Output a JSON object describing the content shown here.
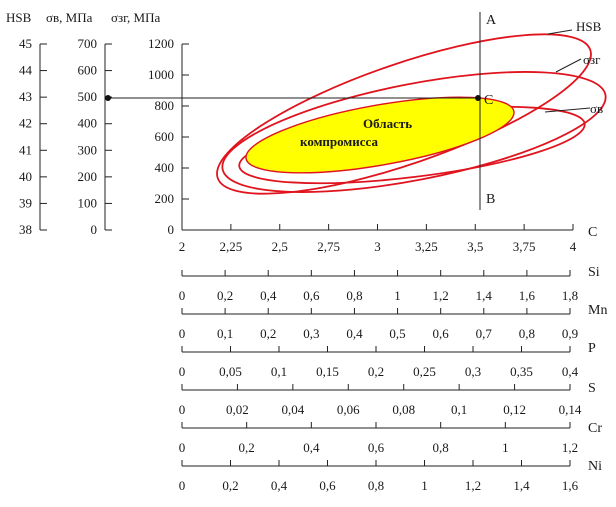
{
  "chart_data": {
    "type": "nomogram",
    "left_axes": [
      {
        "label": "HSB",
        "ticks": [
          "45",
          "44",
          "43",
          "42",
          "41",
          "40",
          "39",
          "38"
        ],
        "range": [
          38,
          45
        ]
      },
      {
        "label": "σв, МПа",
        "ticks": [
          "700",
          "600",
          "500",
          "400",
          "300",
          "200",
          "100",
          "0"
        ],
        "range": [
          0,
          700
        ]
      },
      {
        "label": "σзг, МПа",
        "ticks": [
          "1200",
          "1000",
          "800",
          "600",
          "400",
          "200",
          "0"
        ],
        "range": [
          0,
          1200
        ]
      }
    ],
    "x_axis": {
      "label": "C",
      "ticks": [
        "2",
        "2,25",
        "2,5",
        "2,75",
        "3",
        "3,25",
        "3,5",
        "3,75",
        "4"
      ],
      "range": [
        2,
        4
      ]
    },
    "element_scales": [
      {
        "label": "Si",
        "ticks": [
          "0",
          "0,2",
          "0,4",
          "0,6",
          "0,8",
          "1",
          "1,2",
          "1,4",
          "1,6",
          "1,8"
        ],
        "range": [
          0,
          1.8
        ]
      },
      {
        "label": "Mn",
        "ticks": [
          "0",
          "0,1",
          "0,2",
          "0,3",
          "0,4",
          "0,5",
          "0,6",
          "0,7",
          "0,8",
          "0,9"
        ],
        "range": [
          0,
          0.9
        ]
      },
      {
        "label": "P",
        "ticks": [
          "0",
          "0,05",
          "0,1",
          "0,15",
          "0,2",
          "0,25",
          "0,3",
          "0,35",
          "0,4"
        ],
        "range": [
          0,
          0.4
        ]
      },
      {
        "label": "S",
        "ticks": [
          "0",
          "0,02",
          "0,04",
          "0,06",
          "0,08",
          "0,1",
          "0,12",
          "0,14"
        ],
        "range": [
          0,
          0.14
        ]
      },
      {
        "label": "Cr",
        "ticks": [
          "0",
          "0,2",
          "0,4",
          "0,6",
          "0,8",
          "1",
          "1,2"
        ],
        "range": [
          0,
          1.2
        ]
      },
      {
        "label": "Ni",
        "ticks": [
          "0",
          "0,2",
          "0,4",
          "0,6",
          "0,8",
          "1",
          "1,2",
          "1,4",
          "1,6"
        ],
        "range": [
          0,
          1.6
        ]
      }
    ],
    "ellipse_labels": [
      "HSB",
      "σзг",
      "σв"
    ],
    "compromise_region_label": [
      "Область",
      "компромисса"
    ],
    "vertical_line": {
      "x": 3.5,
      "top_label": "A",
      "bottom_label": "B"
    },
    "point": {
      "label": "C",
      "x": 3.5,
      "sigma_zg": 850,
      "sigma_v": 488,
      "hsb": 42.9
    },
    "colors": {
      "ellipse": "#e0141e",
      "compromise_fill": "#ffff00",
      "axes": "#222222"
    }
  }
}
